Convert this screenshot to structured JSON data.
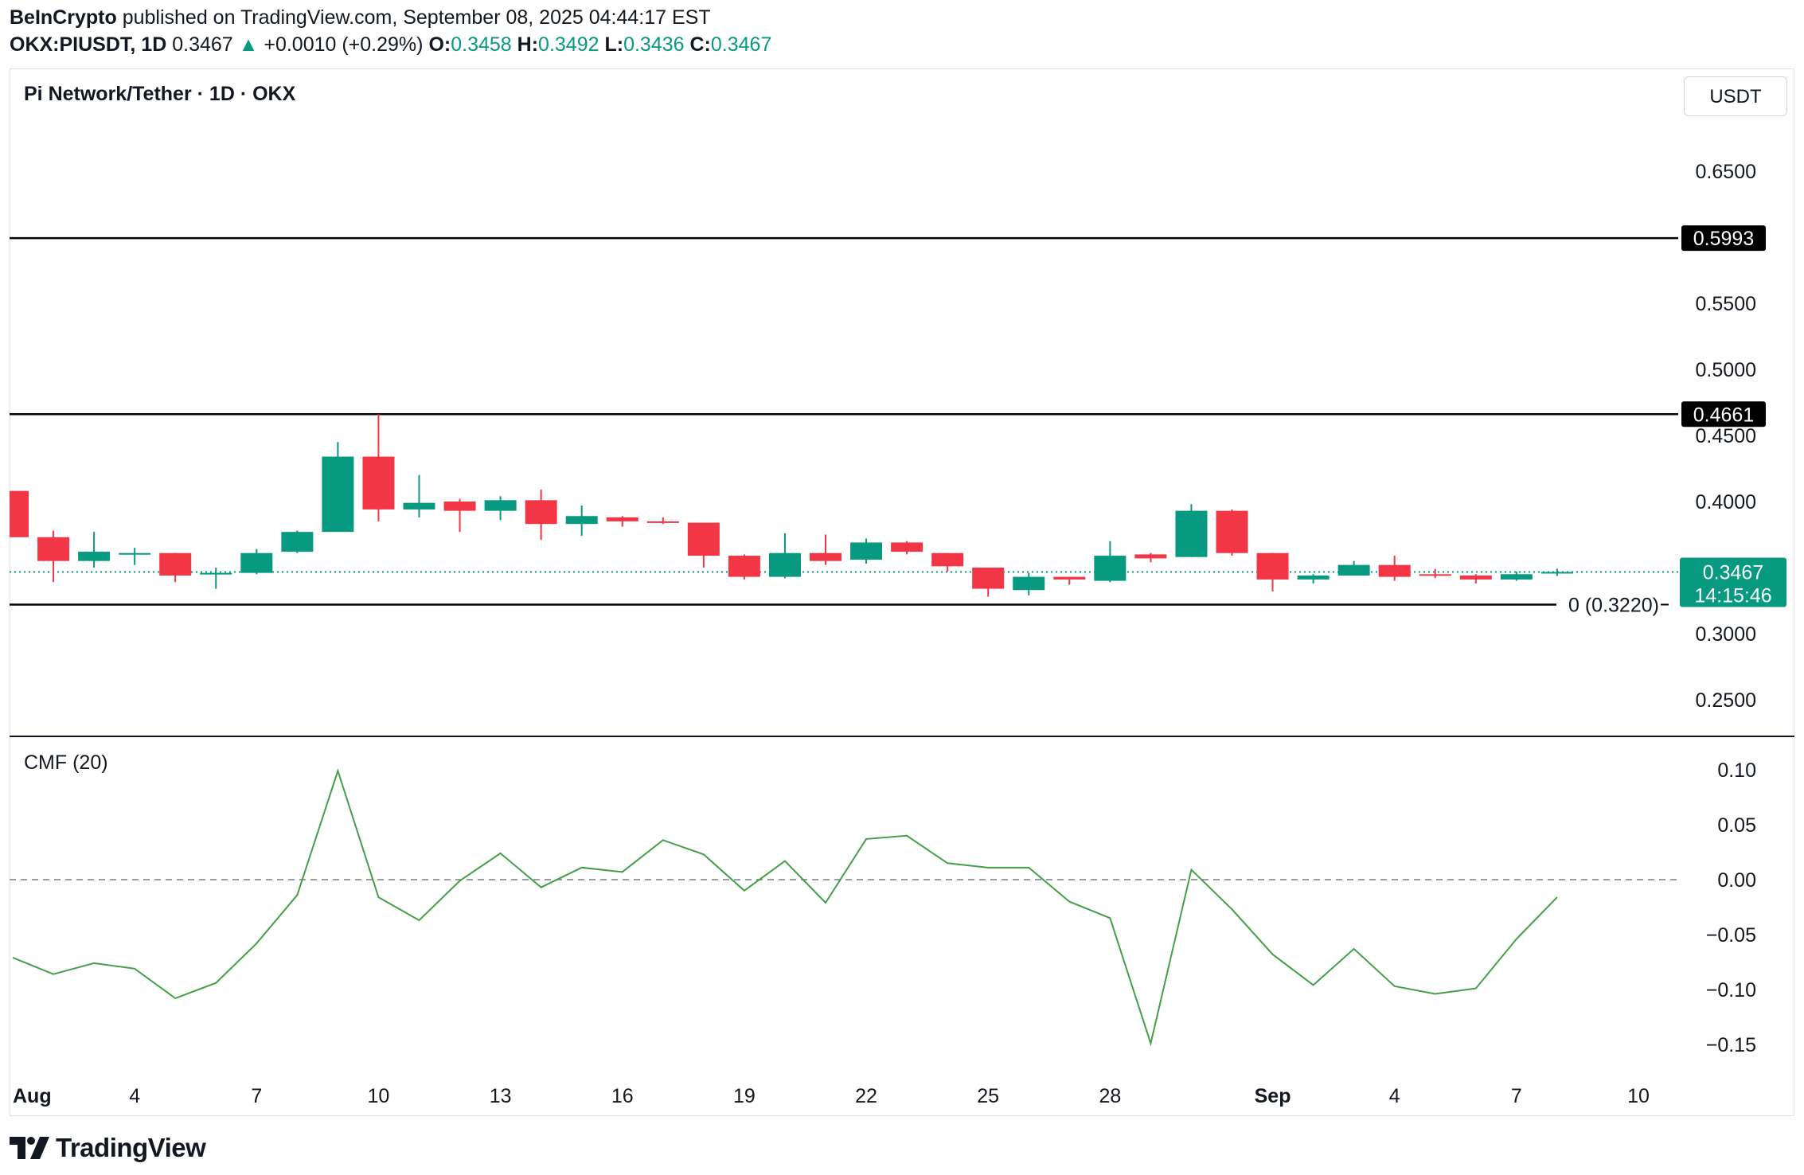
{
  "header": {
    "publisher": "BeInCrypto",
    "published_text": "published on TradingView.com, September 08, 2025 04:44:17 EST",
    "symbol": "OKX:PIUSDT, 1D",
    "last": "0.3467",
    "change": "+0.0010 (+0.29%)",
    "o_label": "O:",
    "o_value": "0.3458",
    "h_label": "H:",
    "h_value": "0.3492",
    "l_label": "L:",
    "l_value": "0.3436",
    "c_label": "C:",
    "c_value": "0.3467"
  },
  "main_pane": {
    "title": "Pi Network/Tether · 1D · OKX",
    "currency_button": "USDT"
  },
  "cmf_pane": {
    "title": "CMF (20)"
  },
  "footer": {
    "brand": "TradingView"
  },
  "colors": {
    "up": "#089981",
    "down": "#f23645",
    "cmf": "#43a047",
    "text": "#131722"
  },
  "chart_data": [
    {
      "type": "candlestick",
      "title": "Pi Network/Tether · 1D · OKX",
      "y_axis_ticks": [
        "0.6500",
        "0.5500",
        "0.5000",
        "0.4500",
        "0.4000",
        "0.3000",
        "0.2500"
      ],
      "ylim": [
        0.225,
        0.675
      ],
      "x_axis_labels": [
        "Aug",
        "4",
        "7",
        "10",
        "13",
        "16",
        "19",
        "22",
        "25",
        "28",
        "Sep",
        "4",
        "7",
        "10"
      ],
      "horizontal_lines": [
        {
          "value": 0.5993,
          "label": "0.5993"
        },
        {
          "value": 0.4661,
          "label": "0.4661"
        },
        {
          "value": 0.322,
          "label": "0 (0.3220)"
        }
      ],
      "last_price": {
        "value": 0.3467,
        "label": "0.3467",
        "countdown": "14:15:46"
      },
      "candles": [
        {
          "o": 0.408,
          "h": 0.408,
          "l": 0.373,
          "c": 0.373
        },
        {
          "o": 0.373,
          "h": 0.378,
          "l": 0.339,
          "c": 0.355
        },
        {
          "o": 0.355,
          "h": 0.377,
          "l": 0.35,
          "c": 0.362
        },
        {
          "o": 0.36,
          "h": 0.365,
          "l": 0.352,
          "c": 0.361
        },
        {
          "o": 0.361,
          "h": 0.361,
          "l": 0.339,
          "c": 0.344
        },
        {
          "o": 0.345,
          "h": 0.35,
          "l": 0.334,
          "c": 0.346
        },
        {
          "o": 0.346,
          "h": 0.364,
          "l": 0.345,
          "c": 0.361
        },
        {
          "o": 0.362,
          "h": 0.378,
          "l": 0.361,
          "c": 0.377
        },
        {
          "o": 0.377,
          "h": 0.445,
          "l": 0.377,
          "c": 0.434
        },
        {
          "o": 0.434,
          "h": 0.466,
          "l": 0.385,
          "c": 0.394
        },
        {
          "o": 0.394,
          "h": 0.42,
          "l": 0.388,
          "c": 0.399
        },
        {
          "o": 0.4,
          "h": 0.402,
          "l": 0.377,
          "c": 0.393
        },
        {
          "o": 0.393,
          "h": 0.404,
          "l": 0.386,
          "c": 0.401
        },
        {
          "o": 0.401,
          "h": 0.409,
          "l": 0.371,
          "c": 0.383
        },
        {
          "o": 0.383,
          "h": 0.397,
          "l": 0.374,
          "c": 0.389
        },
        {
          "o": 0.388,
          "h": 0.389,
          "l": 0.381,
          "c": 0.385
        },
        {
          "o": 0.385,
          "h": 0.388,
          "l": 0.383,
          "c": 0.384
        },
        {
          "o": 0.384,
          "h": 0.384,
          "l": 0.35,
          "c": 0.359
        },
        {
          "o": 0.359,
          "h": 0.36,
          "l": 0.341,
          "c": 0.343
        },
        {
          "o": 0.343,
          "h": 0.376,
          "l": 0.342,
          "c": 0.361
        },
        {
          "o": 0.361,
          "h": 0.375,
          "l": 0.352,
          "c": 0.355
        },
        {
          "o": 0.356,
          "h": 0.372,
          "l": 0.353,
          "c": 0.369
        },
        {
          "o": 0.369,
          "h": 0.37,
          "l": 0.36,
          "c": 0.362
        },
        {
          "o": 0.361,
          "h": 0.361,
          "l": 0.347,
          "c": 0.351
        },
        {
          "o": 0.35,
          "h": 0.35,
          "l": 0.328,
          "c": 0.334
        },
        {
          "o": 0.333,
          "h": 0.346,
          "l": 0.329,
          "c": 0.343
        },
        {
          "o": 0.343,
          "h": 0.343,
          "l": 0.337,
          "c": 0.341
        },
        {
          "o": 0.34,
          "h": 0.37,
          "l": 0.339,
          "c": 0.359
        },
        {
          "o": 0.36,
          "h": 0.361,
          "l": 0.354,
          "c": 0.357
        },
        {
          "o": 0.358,
          "h": 0.398,
          "l": 0.358,
          "c": 0.393
        },
        {
          "o": 0.393,
          "h": 0.394,
          "l": 0.359,
          "c": 0.361
        },
        {
          "o": 0.361,
          "h": 0.361,
          "l": 0.332,
          "c": 0.341
        },
        {
          "o": 0.341,
          "h": 0.345,
          "l": 0.338,
          "c": 0.344
        },
        {
          "o": 0.344,
          "h": 0.355,
          "l": 0.344,
          "c": 0.352
        },
        {
          "o": 0.352,
          "h": 0.359,
          "l": 0.34,
          "c": 0.343
        },
        {
          "o": 0.345,
          "h": 0.349,
          "l": 0.342,
          "c": 0.344
        },
        {
          "o": 0.344,
          "h": 0.345,
          "l": 0.338,
          "c": 0.341
        },
        {
          "o": 0.341,
          "h": 0.347,
          "l": 0.34,
          "c": 0.345
        },
        {
          "o": 0.3458,
          "h": 0.3492,
          "l": 0.3436,
          "c": 0.3467
        }
      ]
    },
    {
      "type": "line",
      "title": "CMF (20)",
      "y_axis_ticks": [
        "0.10",
        "0.05",
        "0.00",
        "−0.05",
        "−0.10",
        "−0.15"
      ],
      "ylim": [
        -0.19,
        0.125
      ],
      "zero_line": true,
      "series": [
        {
          "values": [
            -0.071,
            -0.086,
            -0.076,
            -0.081,
            -0.108,
            -0.094,
            -0.058,
            -0.014,
            0.099,
            -0.016,
            -0.037,
            -0.001,
            0.024,
            -0.007,
            0.011,
            0.007,
            0.036,
            0.023,
            -0.01,
            0.017,
            -0.021,
            0.037,
            0.04,
            0.015,
            0.011,
            0.011,
            -0.02,
            -0.035,
            -0.149,
            0.009,
            -0.027,
            -0.068,
            -0.096,
            -0.063,
            -0.097,
            -0.104,
            -0.099,
            -0.054,
            -0.016
          ]
        }
      ]
    }
  ]
}
